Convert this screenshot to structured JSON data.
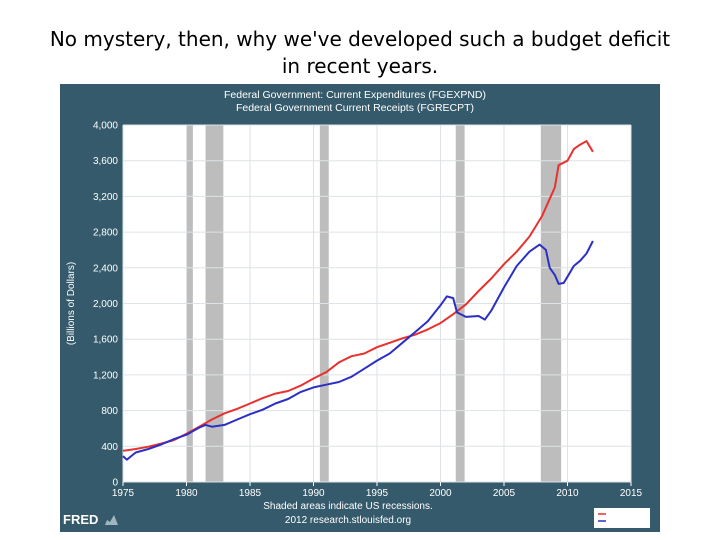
{
  "slide": {
    "title": "No mystery, then, why we've developed such a budget deficit in recent years."
  },
  "chart_data": {
    "type": "line",
    "title_lines": [
      "Federal Government: Current Expenditures (FGEXPND)",
      "Federal Government Current Receipts (FGRECPT)"
    ],
    "ylabel": "(Billions of Dollars)",
    "xlabel": "",
    "xlim": [
      1975,
      2015
    ],
    "ylim": [
      0,
      4000
    ],
    "x_ticks": [
      1975,
      1980,
      1985,
      1990,
      1995,
      2000,
      2005,
      2010,
      2015
    ],
    "y_ticks": [
      0,
      400,
      800,
      1200,
      1600,
      2000,
      2400,
      2800,
      3200,
      3600,
      4000
    ],
    "y_tick_labels": [
      "0",
      "400",
      "800",
      "1,200",
      "1,600",
      "2,000",
      "2,400",
      "2,800",
      "3,200",
      "3,600",
      "4,000"
    ],
    "recessions": [
      [
        1980.0,
        1980.5
      ],
      [
        1981.5,
        1982.9
      ],
      [
        1990.5,
        1991.2
      ],
      [
        2001.2,
        2001.9
      ],
      [
        2007.9,
        2009.5
      ]
    ],
    "series": [
      {
        "name": "FGEXPND",
        "color": "#e8312f",
        "points": [
          [
            1975,
            350
          ],
          [
            1976,
            370
          ],
          [
            1977,
            395
          ],
          [
            1978,
            430
          ],
          [
            1979,
            470
          ],
          [
            1980,
            540
          ],
          [
            1981,
            620
          ],
          [
            1982,
            700
          ],
          [
            1983,
            770
          ],
          [
            1984,
            820
          ],
          [
            1985,
            880
          ],
          [
            1986,
            940
          ],
          [
            1987,
            990
          ],
          [
            1988,
            1020
          ],
          [
            1989,
            1080
          ],
          [
            1990,
            1160
          ],
          [
            1991,
            1230
          ],
          [
            1992,
            1340
          ],
          [
            1993,
            1410
          ],
          [
            1994,
            1440
          ],
          [
            1995,
            1510
          ],
          [
            1996,
            1560
          ],
          [
            1997,
            1610
          ],
          [
            1998,
            1650
          ],
          [
            1999,
            1710
          ],
          [
            2000,
            1780
          ],
          [
            2001,
            1880
          ],
          [
            2002,
            1990
          ],
          [
            2003,
            2140
          ],
          [
            2004,
            2280
          ],
          [
            2005,
            2440
          ],
          [
            2006,
            2580
          ],
          [
            2007,
            2750
          ],
          [
            2008,
            2980
          ],
          [
            2008.5,
            3140
          ],
          [
            2009,
            3300
          ],
          [
            2009.3,
            3550
          ],
          [
            2010,
            3600
          ],
          [
            2010.5,
            3730
          ],
          [
            2011,
            3780
          ],
          [
            2011.5,
            3820
          ],
          [
            2012,
            3700
          ]
        ]
      },
      {
        "name": "FGRECPT",
        "color": "#2b2fc4",
        "points": [
          [
            1975,
            290
          ],
          [
            1975.3,
            250
          ],
          [
            1976,
            330
          ],
          [
            1977,
            370
          ],
          [
            1978,
            420
          ],
          [
            1979,
            480
          ],
          [
            1980,
            530
          ],
          [
            1981,
            610
          ],
          [
            1981.5,
            640
          ],
          [
            1982,
            620
          ],
          [
            1983,
            640
          ],
          [
            1984,
            700
          ],
          [
            1985,
            760
          ],
          [
            1986,
            810
          ],
          [
            1987,
            880
          ],
          [
            1988,
            930
          ],
          [
            1989,
            1010
          ],
          [
            1990,
            1060
          ],
          [
            1991,
            1090
          ],
          [
            1992,
            1120
          ],
          [
            1993,
            1180
          ],
          [
            1994,
            1270
          ],
          [
            1995,
            1360
          ],
          [
            1996,
            1440
          ],
          [
            1997,
            1560
          ],
          [
            1998,
            1680
          ],
          [
            1999,
            1800
          ],
          [
            2000,
            1980
          ],
          [
            2000.5,
            2080
          ],
          [
            2001,
            2060
          ],
          [
            2001.3,
            1900
          ],
          [
            2002,
            1850
          ],
          [
            2003,
            1860
          ],
          [
            2003.5,
            1820
          ],
          [
            2004,
            1920
          ],
          [
            2005,
            2180
          ],
          [
            2006,
            2420
          ],
          [
            2007,
            2580
          ],
          [
            2007.8,
            2660
          ],
          [
            2008.3,
            2600
          ],
          [
            2008.6,
            2400
          ],
          [
            2009,
            2320
          ],
          [
            2009.3,
            2220
          ],
          [
            2009.7,
            2230
          ],
          [
            2010,
            2300
          ],
          [
            2010.5,
            2420
          ],
          [
            2011,
            2480
          ],
          [
            2011.5,
            2560
          ],
          [
            2012,
            2700
          ]
        ]
      }
    ],
    "footer": {
      "logo": "FRED",
      "note_line1": "Shaded areas indicate US recessions.",
      "note_line2": "2012 research.stlouisfed.org"
    }
  },
  "colors": {
    "panel": "#355a6b",
    "plot_bg": "#ffffff",
    "grid": "#dde3e6",
    "recession": "#bdbdbd",
    "label": "#ffffff"
  }
}
